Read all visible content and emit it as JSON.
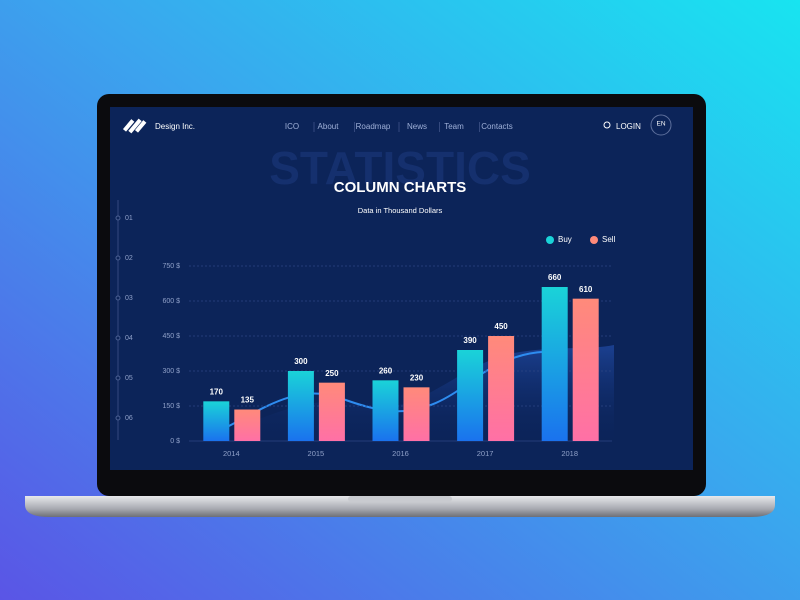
{
  "header": {
    "brand": "Design Inc.",
    "nav": [
      "ICO",
      "About",
      "Roadmap",
      "News",
      "Team",
      "Contacts"
    ],
    "login": "LOGIN",
    "language": "EN"
  },
  "sidebar": {
    "steps": [
      "01",
      "02",
      "03",
      "04",
      "05",
      "06"
    ]
  },
  "background_text": "STATISTICS",
  "chart_data": {
    "type": "bar",
    "title": "COLUMN CHARTS",
    "subtitle": "Data in Thousand Dollars",
    "categories": [
      "2014",
      "2015",
      "2016",
      "2017",
      "2018"
    ],
    "series": [
      {
        "name": "Buy",
        "color": "#1ad3d8",
        "values": [
          170,
          300,
          260,
          390,
          660
        ]
      },
      {
        "name": "Sell",
        "color": "#ff8a7a",
        "values": [
          135,
          250,
          230,
          450,
          610
        ]
      }
    ],
    "ylim": [
      0,
      750
    ],
    "yticks": [
      {
        "value": 0,
        "label": "0 $"
      },
      {
        "value": 150,
        "label": "150 $"
      },
      {
        "value": 300,
        "label": "300 $"
      },
      {
        "value": 450,
        "label": "450 $"
      },
      {
        "value": 600,
        "label": "600 $"
      },
      {
        "value": 750,
        "label": "750 $"
      }
    ],
    "grid": true,
    "legend": "top-right"
  }
}
